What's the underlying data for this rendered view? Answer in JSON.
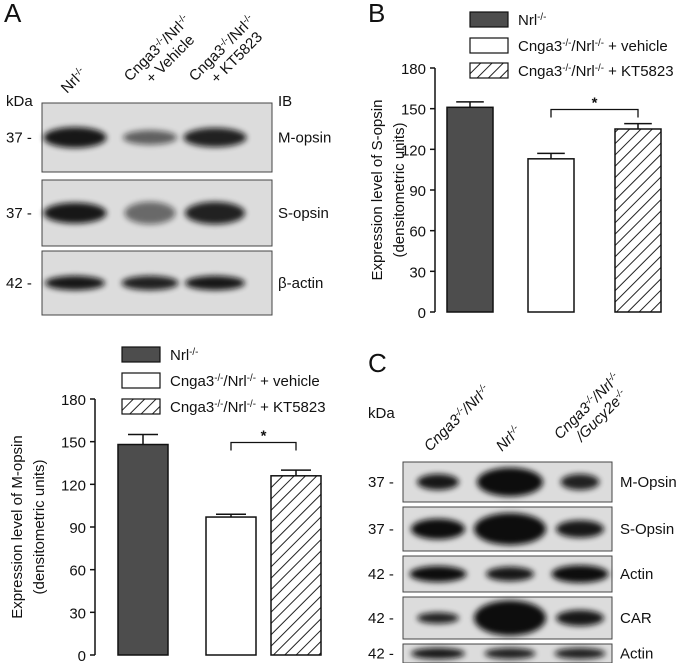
{
  "panels": [
    "A",
    "B",
    "C"
  ],
  "blot_a": {
    "kda_label": "kDa",
    "ib_label": "IB",
    "lanes": [
      [
        "Nrl-/-"
      ],
      [
        "Cnga3-/-/Nrl-/-",
        "+ Vehicle"
      ],
      [
        "Cnga3-/-/Nrl-/-",
        "+ KT5823"
      ]
    ],
    "rows": [
      {
        "kda": "37 -",
        "label": "M-opsin"
      },
      {
        "kda": "37 -",
        "label": "S-opsin"
      },
      {
        "kda": "42 -",
        "label": "β-actin"
      }
    ]
  },
  "blot_c": {
    "kda_label": "kDa",
    "lanes": [
      [
        "Cnga3-/-/Nrl-/-"
      ],
      [
        "Nrl-/-"
      ],
      [
        "Cnga3-/-/Nrl-/-",
        "/Gucy2e-/-"
      ]
    ],
    "rows": [
      {
        "kda": "37 -",
        "label": "M-Opsin"
      },
      {
        "kda": "37 -",
        "label": "S-Opsin"
      },
      {
        "kda": "42 -",
        "label": "Actin"
      },
      {
        "kda": "42 -",
        "label": "CAR"
      },
      {
        "kda": "42 -",
        "label": "Actin"
      }
    ]
  },
  "chart_data": [
    {
      "type": "bar",
      "ylabel": [
        "Expression level of M-opsin",
        "(densitometric units)"
      ],
      "series": [
        {
          "name": "Nrl-/-",
          "color": "#4d4d4d",
          "values": [
            148
          ],
          "errors": [
            7
          ]
        },
        {
          "name": "Cnga3-/-/Nrl-/- + vehicle",
          "color": "#ffffff",
          "values": [
            97
          ],
          "errors": [
            2
          ]
        },
        {
          "name": "Cnga3-/-/Nrl-/- + KT5823",
          "color": "#ffffff",
          "hatch": true,
          "values": [
            126
          ],
          "errors": [
            4
          ]
        }
      ],
      "ylim": [
        0,
        180
      ],
      "yticks": [
        0,
        30,
        60,
        90,
        120,
        150,
        180
      ],
      "significance": "*"
    },
    {
      "type": "bar",
      "ylabel": [
        "Expression level of S-opsin",
        "(densitometric units)"
      ],
      "series": [
        {
          "name": "Nrl-/-",
          "color": "#4d4d4d",
          "values": [
            151
          ],
          "errors": [
            4
          ]
        },
        {
          "name": "Cnga3-/-/Nrl-/- + vehicle",
          "color": "#ffffff",
          "values": [
            113
          ],
          "errors": [
            4
          ]
        },
        {
          "name": "Cnga3-/-/Nrl-/- + KT5823",
          "color": "#ffffff",
          "hatch": true,
          "values": [
            135
          ],
          "errors": [
            4
          ]
        }
      ],
      "ylim": [
        0,
        180
      ],
      "yticks": [
        0,
        30,
        60,
        90,
        120,
        150,
        180
      ],
      "significance": "*"
    }
  ]
}
